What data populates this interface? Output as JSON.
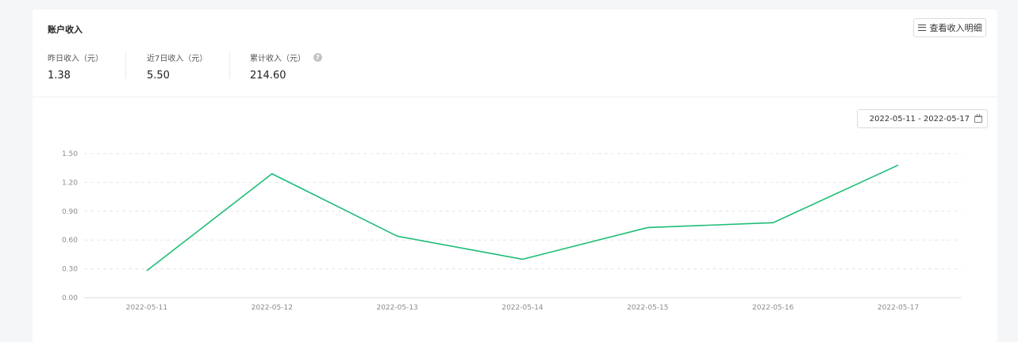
{
  "card": {
    "title": "账户收入",
    "detail_button": "查看收入明细"
  },
  "stats": [
    {
      "label": "昨日收入（元）",
      "value": "1.38"
    },
    {
      "label": "近7日收入（元）",
      "value": "5.50"
    },
    {
      "label": "累计收入（元）",
      "value": "214.60"
    }
  ],
  "help_icon": "?",
  "date_range": {
    "value": "2022-05-11 - 2022-05-17",
    "icon": "calendar-icon"
  },
  "colors": {
    "line": "#1dbd74",
    "grid": "#e6e6e6",
    "axis": "#d9d9d9"
  },
  "chart_data": {
    "type": "line",
    "categories": [
      "2022-05-11",
      "2022-05-12",
      "2022-05-13",
      "2022-05-14",
      "2022-05-15",
      "2022-05-16",
      "2022-05-17"
    ],
    "series": [
      {
        "values": [
          0.28,
          1.29,
          0.64,
          0.4,
          0.73,
          0.78,
          1.38
        ]
      }
    ],
    "y_ticks": [
      "0.00",
      "0.30",
      "0.60",
      "0.90",
      "1.20",
      "1.50"
    ],
    "ylim": [
      0,
      1.5
    ],
    "grid": "horizontal-dashed",
    "legend": "none"
  }
}
